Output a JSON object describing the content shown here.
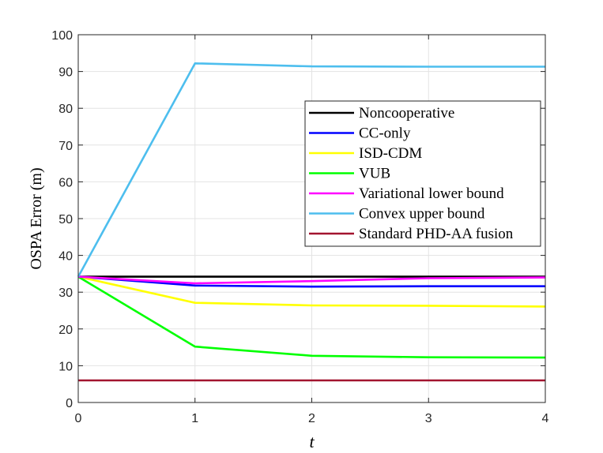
{
  "chart_data": {
    "type": "line",
    "xlabel": "t",
    "ylabel": "OSPA Error (m)",
    "xlim": [
      0,
      4
    ],
    "ylim": [
      0,
      100
    ],
    "xticks": [
      0,
      1,
      2,
      3,
      4
    ],
    "yticks": [
      0,
      10,
      20,
      30,
      40,
      50,
      60,
      70,
      80,
      90,
      100
    ],
    "grid": true,
    "legend_position": "upper-right",
    "x": [
      0,
      1,
      2,
      3,
      4
    ],
    "series": [
      {
        "name": "Noncooperative",
        "color": "#000000",
        "values": [
          34.2,
          34.2,
          34.2,
          34.2,
          34.2
        ]
      },
      {
        "name": "CC-only",
        "color": "#0000ff",
        "values": [
          34.2,
          31.8,
          31.5,
          31.6,
          31.6
        ]
      },
      {
        "name": "ISD-CDM",
        "color": "#ffff00",
        "values": [
          34.2,
          27.1,
          26.4,
          26.3,
          26.1
        ]
      },
      {
        "name": "VUB",
        "color": "#00ff00",
        "values": [
          34.2,
          15.2,
          12.7,
          12.3,
          12.2
        ]
      },
      {
        "name": "Variational lower bound",
        "color": "#ff00ff",
        "values": [
          34.2,
          32.4,
          33.0,
          33.8,
          34.0
        ]
      },
      {
        "name": "Convex upper bound",
        "color": "#4dbeee",
        "values": [
          34.2,
          92.2,
          91.4,
          91.3,
          91.3
        ]
      },
      {
        "name": "Standard PHD-AA fusion",
        "color": "#a2142f",
        "values": [
          6.0,
          6.0,
          6.0,
          6.0,
          6.0
        ]
      }
    ]
  }
}
